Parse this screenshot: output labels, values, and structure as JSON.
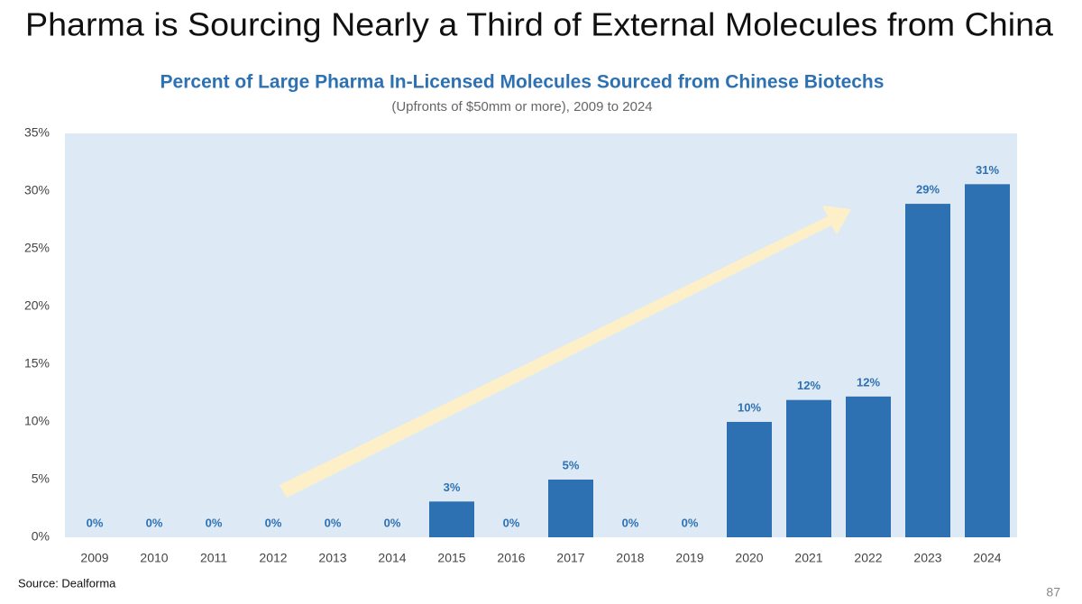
{
  "slide": {
    "title": "Pharma is Sourcing Nearly a Third of External Molecules from China",
    "source": "Source: Dealforma",
    "page_number": "87"
  },
  "chart_data": {
    "type": "bar",
    "title": "Percent of Large Pharma In-Licensed Molecules Sourced from Chinese Biotechs",
    "subtitle": "(Upfronts of $50mm or more), 2009 to 2024",
    "categories": [
      "2009",
      "2010",
      "2011",
      "2012",
      "2013",
      "2014",
      "2015",
      "2016",
      "2017",
      "2018",
      "2019",
      "2020",
      "2021",
      "2022",
      "2023",
      "2024"
    ],
    "values": [
      0,
      0,
      0,
      0,
      0,
      0,
      3.1,
      0,
      5.0,
      0,
      0,
      10.0,
      11.9,
      12.2,
      28.9,
      30.6
    ],
    "value_labels": [
      "0%",
      "0%",
      "0%",
      "0%",
      "0%",
      "0%",
      "3%",
      "0%",
      "5%",
      "0%",
      "0%",
      "10%",
      "12%",
      "12%",
      "29%",
      "31%"
    ],
    "color": "#2e71b3",
    "ylim": [
      0,
      35
    ],
    "yticks": [
      {
        "value": 0,
        "label": "0%"
      },
      {
        "value": 5,
        "label": "5%"
      },
      {
        "value": 10,
        "label": "10%"
      },
      {
        "value": 15,
        "label": "15%"
      },
      {
        "value": 20,
        "label": "20%"
      },
      {
        "value": 25,
        "label": "25%"
      },
      {
        "value": 30,
        "label": "30%"
      },
      {
        "value": 35,
        "label": "35%"
      }
    ],
    "grid": false
  }
}
